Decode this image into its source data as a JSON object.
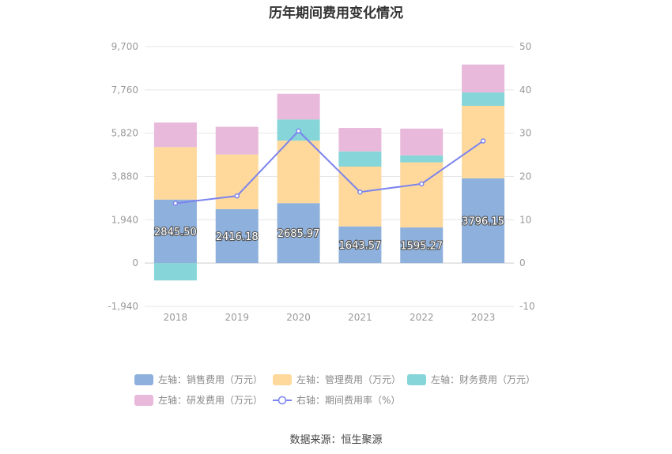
{
  "chart_data": {
    "type": "bar",
    "title": "历年期间费用变化情况",
    "categories": [
      "2018",
      "2019",
      "2020",
      "2021",
      "2022",
      "2023"
    ],
    "left_axis": {
      "ylim": [
        -1940,
        9700
      ],
      "ticks": [
        "-1,940",
        "0",
        "1,940",
        "3,880",
        "5,820",
        "7,760",
        "9,700"
      ]
    },
    "right_axis": {
      "ylim": [
        -10,
        50
      ],
      "ticks": [
        "-10",
        "0",
        "10",
        "20",
        "30",
        "40",
        "50"
      ]
    },
    "stacked": true,
    "series": [
      {
        "name": "左轴：销售费用（万元）",
        "axis": "left",
        "color": "#8eb0dc",
        "values": [
          2845.5,
          2416.18,
          2685.97,
          1643.57,
          1595.27,
          3796.15
        ],
        "labels": [
          "2845.50",
          "2416.18",
          "2685.97",
          "1643.57",
          "1595.27",
          "3796.15"
        ]
      },
      {
        "name": "左轴：管理费用（万元）",
        "axis": "left",
        "color": "#fed99b",
        "values": [
          2350,
          2450,
          2800,
          2680,
          2920,
          3250
        ]
      },
      {
        "name": "左轴：财务费用（万元）",
        "axis": "left",
        "color": "#85d5d9",
        "values": [
          -780,
          0,
          950,
          680,
          310,
          600
        ]
      },
      {
        "name": "左轴：研发费用（万元）",
        "axis": "left",
        "color": "#e8b9da",
        "values": [
          1100,
          1240,
          1150,
          1050,
          1200,
          1250
        ]
      },
      {
        "name": "右轴：期间费用率（%）",
        "axis": "right",
        "type": "line",
        "color": "#7b83ee",
        "values": [
          13.8,
          15.5,
          30.5,
          16.4,
          18.3,
          28.2
        ]
      }
    ],
    "grid": true,
    "legend_position": "bottom",
    "source": "数据来源：恒生聚源"
  }
}
